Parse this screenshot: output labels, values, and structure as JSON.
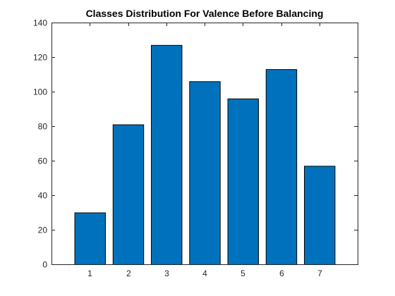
{
  "chart_data": {
    "type": "bar",
    "title": "Classes Distribution For Valence Before Balancing",
    "xlabel": "",
    "ylabel": "",
    "categories": [
      "1",
      "2",
      "3",
      "4",
      "5",
      "6",
      "7"
    ],
    "values": [
      30,
      81,
      127,
      106,
      96,
      113,
      57
    ],
    "xlim": [
      0,
      8
    ],
    "ylim": [
      0,
      140
    ],
    "yticks": [
      0,
      20,
      40,
      60,
      80,
      100,
      120,
      140
    ],
    "grid": false,
    "legend": "none",
    "bar_color": "#0072bd",
    "bar_edge_color": "#000000",
    "axis_color": "#262626"
  }
}
